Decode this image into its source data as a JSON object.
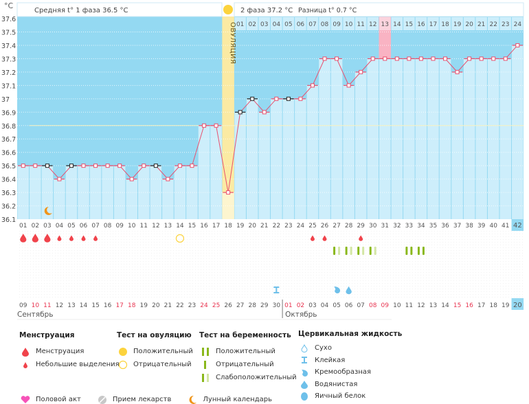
{
  "chart_data": {
    "type": "line",
    "yunit": "°C",
    "ylim": [
      36.1,
      37.6
    ],
    "yticks": [
      "37.6",
      "37.5",
      "37.4",
      "37.3",
      "37.2",
      "37.1",
      "37",
      "36.9",
      "36.8",
      "36.7",
      "36.6",
      "36.5",
      "36.4",
      "36.3",
      "36.2",
      "36.1"
    ],
    "coverline": 36.8,
    "cycle_days": [
      "01",
      "02",
      "03",
      "04",
      "05",
      "06",
      "07",
      "08",
      "09",
      "10",
      "11",
      "12",
      "13",
      "14",
      "15",
      "16",
      "17",
      "18",
      "19",
      "20",
      "21",
      "22",
      "23",
      "24",
      "25",
      "26",
      "27",
      "28",
      "29",
      "30",
      "31",
      "32",
      "33",
      "34",
      "35",
      "36",
      "37",
      "38",
      "39",
      "40",
      "41",
      "42"
    ],
    "temperatures": [
      36.5,
      36.5,
      36.5,
      36.4,
      36.5,
      36.5,
      36.5,
      36.5,
      36.5,
      36.4,
      36.5,
      36.5,
      36.4,
      36.5,
      36.5,
      36.8,
      36.8,
      36.3,
      36.9,
      37.0,
      36.9,
      37.0,
      37.0,
      37.0,
      37.1,
      37.3,
      37.3,
      37.1,
      37.2,
      37.3,
      37.3,
      37.3,
      37.3,
      37.3,
      37.3,
      37.3,
      37.2,
      37.3,
      37.3,
      37.3,
      37.3,
      37.4
    ],
    "black_marked_days": [
      3,
      5,
      12,
      19,
      20,
      23
    ],
    "ovulation_day": 18,
    "highlight_phase2_day": 13,
    "current_day": 42,
    "phase2_days": [
      "01",
      "02",
      "03",
      "04",
      "05",
      "06",
      "07",
      "08",
      "09",
      "10",
      "11",
      "12",
      "13",
      "14",
      "15",
      "16",
      "17",
      "18",
      "19",
      "20",
      "21",
      "22",
      "23",
      "24"
    ],
    "dates": [
      "09",
      "10",
      "11",
      "12",
      "13",
      "14",
      "15",
      "16",
      "17",
      "18",
      "19",
      "20",
      "21",
      "22",
      "23",
      "24",
      "25",
      "26",
      "27",
      "28",
      "29",
      "30",
      "01",
      "02",
      "03",
      "04",
      "05",
      "06",
      "07",
      "08",
      "09",
      "10",
      "11",
      "12",
      "13",
      "14",
      "15",
      "16",
      "17",
      "18",
      "19",
      "20"
    ],
    "weekend_date_indices": [
      1,
      2,
      8,
      9,
      15,
      16,
      22,
      23,
      29,
      30,
      36,
      37
    ],
    "months": [
      "Сентябрь",
      "Октябрь"
    ],
    "colors": {
      "bg_dark": "#94d9f2",
      "bar_light": "#cdeefb",
      "line": "#e8506e",
      "ovulation": "#fbeaa3",
      "highlight": "#f9b3c3",
      "weekend": "#e8334f"
    }
  },
  "header": {
    "unit": "°C",
    "phase1": "Средняя t° 1 фаза 36.5 °C",
    "phase2": "2 фаза 37.2 °C",
    "diff": "Разница t° 0.7 °C",
    "ovulation_label": "ОВУЛЯЦИЯ"
  },
  "events": {
    "menstruation": [
      1,
      2,
      3
    ],
    "spotting": [
      4,
      5,
      6,
      7,
      25,
      26,
      29
    ],
    "ovulation_test_negative": [
      14
    ],
    "pregnancy_weak_positive": [
      27,
      28,
      29,
      30
    ],
    "pregnancy_positive": [
      33,
      34
    ],
    "cervical_sticky": [
      22
    ],
    "cervical_creamy": [
      27
    ],
    "cervical_watery": [
      28
    ],
    "moon": [
      3
    ]
  },
  "legend": {
    "menstruation": {
      "title": "Менструация",
      "items": [
        "Менструация",
        "Небольшие выделения"
      ]
    },
    "ovulation_test": {
      "title": "Тест на овуляцию",
      "items": [
        "Положительный",
        "Отрицательный"
      ]
    },
    "pregnancy_test": {
      "title": "Тест на беременность",
      "items": [
        "Положительный",
        "Отрицательный",
        "Слабоположительный"
      ]
    },
    "cervical": {
      "title": "Цервикальная жидкость",
      "items": [
        "Сухо",
        "Клейкая",
        "Кремообразная",
        "Водянистая",
        "Яичный белок"
      ]
    },
    "other": [
      "Половой акт",
      "Прием лекарств",
      "Лунный календарь"
    ]
  }
}
